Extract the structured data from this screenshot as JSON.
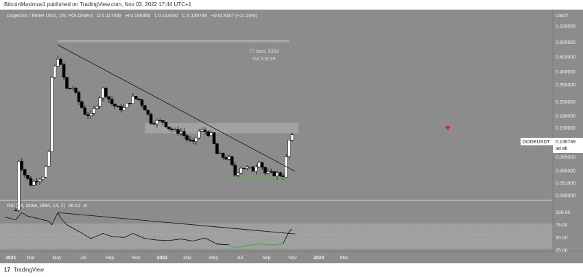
{
  "header": {
    "publisher_text": "BitcoinMaximus1 published on TradingView.com, Nov 03, 2022 17:44 UTC+1"
  },
  "legend": {
    "symbol_text": "Dogecoin / Tether USD, 1W, POLONIEX",
    "open_label": "O",
    "open_value": "0.117535",
    "high_label": "H",
    "high_value": "0.158350",
    "low_label": "L",
    "low_value": "0.114000",
    "close_label": "C",
    "close_value": "0.130749",
    "change_value": "+0.013167 (+11.20%)"
  },
  "price_axis": {
    "currency": "USDT",
    "ticks": [
      "1.100000",
      "0.800000",
      "0.600000",
      "0.450000",
      "0.350000",
      "0.250000",
      "0.190000",
      "0.150000",
      "0.110000",
      "0.085000",
      "0.065000",
      "0.051000",
      "0.040000"
    ]
  },
  "ticker_badge": {
    "symbol": "DOGEUSDT",
    "price": "0.130749",
    "countdown": "3d 8h"
  },
  "measure": {
    "bars_text": "77 bars, 539d",
    "vol_text": "Vol 3.801B"
  },
  "rsi": {
    "label": "RSI (14, close, SMA, 14, 2)",
    "value": "66.61",
    "value_suffix": "ø",
    "ticks": [
      "100.00",
      "75.00",
      "50.00",
      "25.00"
    ]
  },
  "time_axis": {
    "ticks": [
      "2021",
      "Mar",
      "May",
      "Jul",
      "Sep",
      "Nov",
      "2022",
      "Mar",
      "May",
      "Jul",
      "Sep",
      "Nov",
      "2023",
      "Mar"
    ]
  },
  "footer": {
    "brand_mark": "17",
    "brand": "TradingView"
  },
  "colors": {
    "background": "#8c8c8c",
    "rsi_band": "#a0a0a0",
    "candle_up": "#ffffff",
    "candle_down": "#000000",
    "support": "#3fbf3f",
    "marker": "#e02020",
    "resistance_zone": "#b4b4b4"
  },
  "chart_data": {
    "type": "candlestick",
    "title": "Dogecoin / Tether USD, 1W, POLONIEX",
    "scale": "log",
    "ylim": [
      0.04,
      1.1
    ],
    "x_ticks": [
      "2021",
      "Mar",
      "May",
      "Jul",
      "Sep",
      "Nov",
      "2022",
      "Mar",
      "May",
      "Jul",
      "Sep",
      "Nov",
      "2023",
      "Mar"
    ],
    "price_points": [
      [
        "2021-01-25",
        0.03
      ],
      [
        "2021-02-01",
        0.08
      ],
      [
        "2021-02-15",
        0.06
      ],
      [
        "2021-03-01",
        0.05
      ],
      [
        "2021-03-15",
        0.055
      ],
      [
        "2021-04-01",
        0.06
      ],
      [
        "2021-04-12",
        0.09
      ],
      [
        "2021-04-19",
        0.4
      ],
      [
        "2021-05-03",
        0.6
      ],
      [
        "2021-05-10",
        0.5
      ],
      [
        "2021-05-17",
        0.4
      ],
      [
        "2021-05-24",
        0.32
      ],
      [
        "2021-06-07",
        0.33
      ],
      [
        "2021-06-21",
        0.25
      ],
      [
        "2021-07-05",
        0.2
      ],
      [
        "2021-07-19",
        0.19
      ],
      [
        "2021-08-02",
        0.24
      ],
      [
        "2021-08-16",
        0.32
      ],
      [
        "2021-09-06",
        0.24
      ],
      [
        "2021-09-20",
        0.22
      ],
      [
        "2021-10-04",
        0.22
      ],
      [
        "2021-10-25",
        0.27
      ],
      [
        "2021-11-08",
        0.26
      ],
      [
        "2021-11-22",
        0.22
      ],
      [
        "2021-12-06",
        0.17
      ],
      [
        "2021-12-20",
        0.17
      ],
      [
        "2022-01-03",
        0.17
      ],
      [
        "2022-01-17",
        0.15
      ],
      [
        "2022-01-31",
        0.14
      ],
      [
        "2022-02-14",
        0.14
      ],
      [
        "2022-02-28",
        0.12
      ],
      [
        "2022-03-14",
        0.11
      ],
      [
        "2022-03-28",
        0.14
      ],
      [
        "2022-04-11",
        0.14
      ],
      [
        "2022-04-25",
        0.13
      ],
      [
        "2022-05-09",
        0.09
      ],
      [
        "2022-05-23",
        0.085
      ],
      [
        "2022-06-06",
        0.082
      ],
      [
        "2022-06-20",
        0.06
      ],
      [
        "2022-07-04",
        0.07
      ],
      [
        "2022-07-18",
        0.068
      ],
      [
        "2022-08-01",
        0.066
      ],
      [
        "2022-08-15",
        0.08
      ],
      [
        "2022-08-29",
        0.062
      ],
      [
        "2022-09-12",
        0.061
      ],
      [
        "2022-09-26",
        0.061
      ],
      [
        "2022-10-10",
        0.059
      ],
      [
        "2022-10-24",
        0.117
      ],
      [
        "2022-10-31",
        0.1307
      ]
    ],
    "rsi_points": [
      [
        "2021-01-01",
        90
      ],
      [
        "2021-01-25",
        85
      ],
      [
        "2021-02-08",
        99
      ],
      [
        "2021-02-22",
        92
      ],
      [
        "2021-03-15",
        88
      ],
      [
        "2021-04-12",
        82
      ],
      [
        "2021-04-19",
        75
      ],
      [
        "2021-05-03",
        99
      ],
      [
        "2021-05-10",
        88
      ],
      [
        "2021-05-24",
        75
      ],
      [
        "2021-06-21",
        62
      ],
      [
        "2021-07-19",
        48
      ],
      [
        "2021-08-16",
        58
      ],
      [
        "2021-09-06",
        52
      ],
      [
        "2021-10-04",
        50
      ],
      [
        "2021-10-25",
        58
      ],
      [
        "2021-11-22",
        48
      ],
      [
        "2021-12-20",
        45
      ],
      [
        "2022-01-17",
        44
      ],
      [
        "2022-02-14",
        47
      ],
      [
        "2022-03-14",
        43
      ],
      [
        "2022-04-11",
        49
      ],
      [
        "2022-05-09",
        37
      ],
      [
        "2022-06-06",
        36
      ],
      [
        "2022-06-20",
        30
      ],
      [
        "2022-07-18",
        34
      ],
      [
        "2022-08-15",
        38
      ],
      [
        "2022-09-12",
        35
      ],
      [
        "2022-10-10",
        38
      ],
      [
        "2022-10-24",
        62
      ],
      [
        "2022-10-31",
        66.61
      ]
    ],
    "rsi_ylim": [
      10,
      110
    ],
    "annotations": {
      "descending_resistance": [
        [
          "2021-05-03",
          0.76
        ],
        [
          "2022-11-07",
          0.064
        ]
      ],
      "support_level": [
        [
          "2022-06-13",
          0.057
        ],
        [
          "2022-10-17",
          0.057
        ]
      ],
      "horizontal_zone": [
        [
          "2021-11-22",
          0.135
        ],
        [
          "2022-11-14",
          0.165
        ]
      ],
      "measure_bar": [
        [
          "2021-05-03",
          0.82
        ],
        [
          "2022-10-24",
          0.82
        ]
      ],
      "rsi_trendline": [
        [
          "2021-05-03",
          99
        ],
        [
          "2022-11-07",
          57
        ]
      ]
    }
  }
}
